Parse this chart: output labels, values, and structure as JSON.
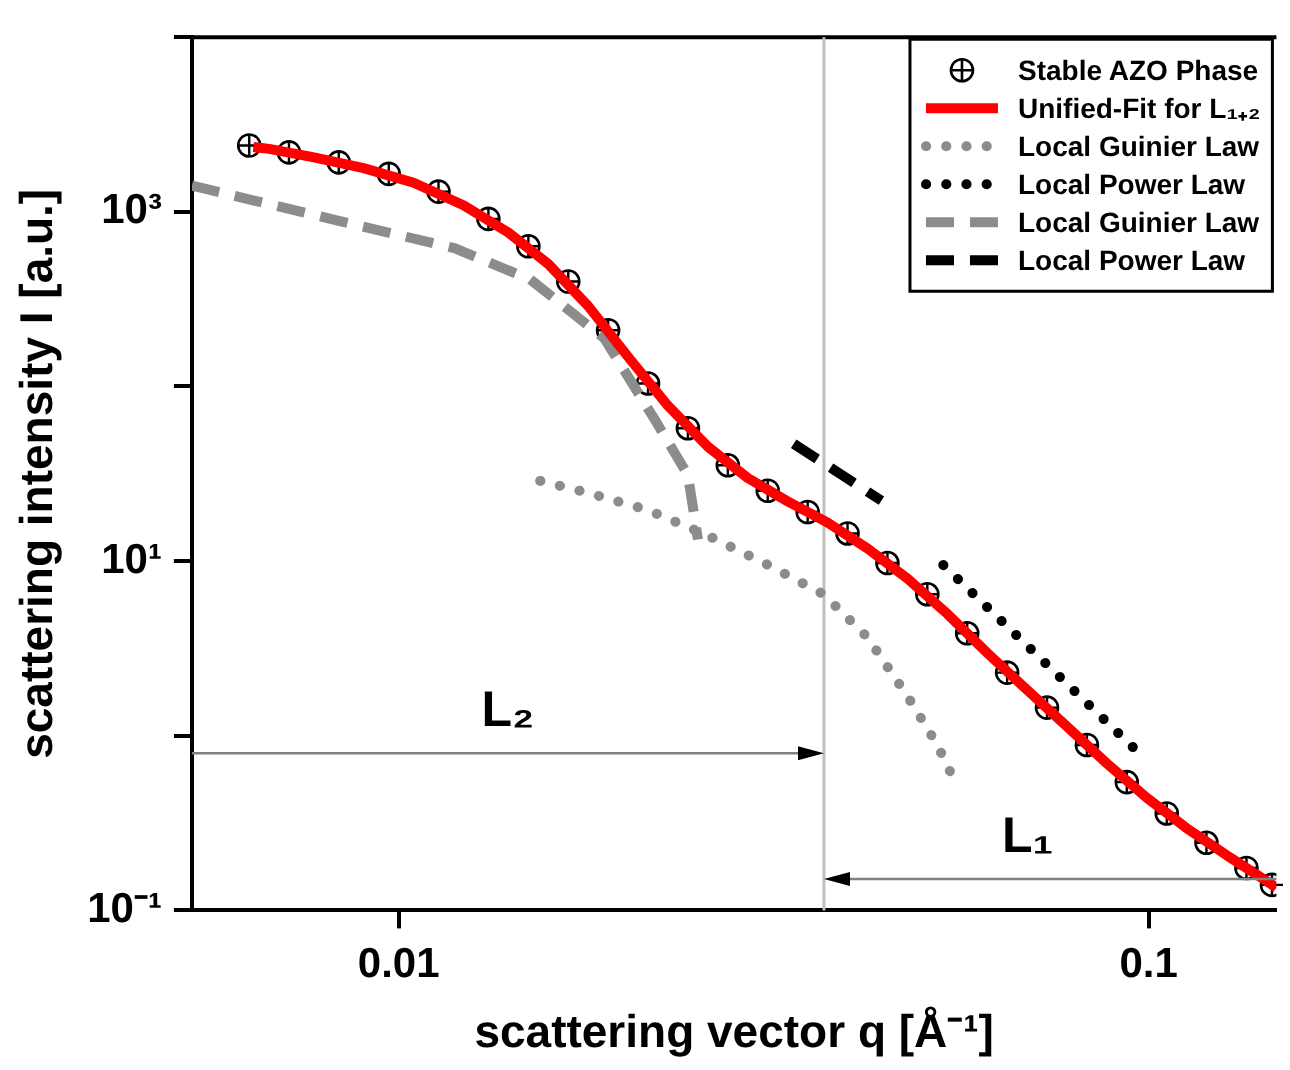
{
  "chart_data": {
    "type": "line",
    "xlabel": "scattering vector q [Å⁻¹]",
    "ylabel": "scattering intensity I [a.u.]",
    "log": "xy",
    "xlim": [
      0.0053,
      0.148
    ],
    "ylim": [
      0.1,
      10000
    ],
    "xticks": [
      0.01,
      0.1
    ],
    "yticks": [
      {
        "value": 0.1,
        "label": "10⁻¹"
      },
      {
        "value": 1,
        "label": null
      },
      {
        "value": 10,
        "label": "10¹"
      },
      {
        "value": 100,
        "label": null
      },
      {
        "value": 1000,
        "label": "10³"
      },
      {
        "value": 10000,
        "label": null
      }
    ],
    "grid": false,
    "legend": "top right",
    "series": [
      {
        "name": "Stable AZO Phase",
        "type": "scatter",
        "marker": "circle",
        "color": "#000000",
        "x": [
          0.00632,
          0.00714,
          0.00832,
          0.0097,
          0.0113,
          0.01317,
          0.01489,
          0.01683,
          0.01902,
          0.0215,
          0.0243,
          0.02747,
          0.03105,
          0.0351,
          0.03967,
          0.04484,
          0.05068,
          0.05728,
          0.06475,
          0.07318,
          0.08272,
          0.0935,
          0.1057,
          0.1194,
          0.135,
          0.146
        ],
        "values": [
          2400,
          2190,
          1920,
          1650,
          1306,
          912,
          635,
          399,
          210,
          104,
          57.7,
          35.4,
          25.3,
          19.1,
          14.4,
          9.75,
          6.46,
          3.86,
          2.3,
          1.45,
          0.886,
          0.543,
          0.359,
          0.244,
          0.175,
          0.14
        ]
      },
      {
        "name": "Unified-Fit for L₁₊₂",
        "type": "line",
        "marker": "none",
        "line_style": "solid",
        "color": "#ff0000",
        "x": [
          0.0064,
          0.00672,
          0.00771,
          0.00898,
          0.01047,
          0.0122,
          0.014,
          0.01583,
          0.01789,
          0.02022,
          0.02286,
          0.02584,
          0.0292,
          0.03301,
          0.03732,
          0.04218,
          0.04767,
          0.05388,
          0.0609,
          0.06884,
          0.0778,
          0.08795,
          0.0994,
          0.1123,
          0.127,
          0.1404,
          0.148
        ],
        "values": [
          2350,
          2293,
          2051,
          1780,
          1468,
          1091,
          761,
          503,
          289,
          148,
          77.5,
          45.2,
          29.9,
          22,
          16.6,
          11.8,
          7.94,
          4.99,
          2.98,
          1.83,
          1.13,
          0.694,
          0.442,
          0.296,
          0.207,
          0.157,
          0.135
        ]
      },
      {
        "name": "Local Guinier Law",
        "line_style": "dotted",
        "color": "#8c8c8c",
        "x": [
          0.01544,
          0.01789,
          0.0215,
          0.02584,
          0.0311,
          0.03685,
          0.04217,
          0.04767,
          0.05226,
          0.05489
        ],
        "values": [
          28.8,
          24.6,
          19.6,
          14,
          9.5,
          6.46,
          3.66,
          1.69,
          0.886,
          0.571
        ]
      },
      {
        "name": "Local Power Law",
        "line_style": "dotted",
        "color": "#000000",
        "x": [
          0.05322,
          0.0964
        ],
        "values": [
          9.5,
          0.82
        ]
      },
      {
        "name": "Local Guinier Law",
        "line_style": "dashed",
        "color": "#8c8c8c",
        "x": [
          0.0053,
          0.00832,
          0.01187,
          0.01498,
          0.01879,
          0.0219,
          0.0243,
          0.02506
        ],
        "values": [
          1413,
          887,
          619,
          410,
          189,
          65.6,
          31.1,
          13.3
        ]
      },
      {
        "name": "Local Power Law",
        "line_style": "dashed",
        "color": "#000000",
        "x": [
          0.03362,
          0.04402
        ],
        "values": [
          47,
          22.2
        ]
      }
    ],
    "ref_lines": [
      {
        "axis": "x",
        "value": 0.0369,
        "color": "#c0c0c0"
      }
    ],
    "annotations": [
      "L₂",
      "L₁"
    ]
  }
}
